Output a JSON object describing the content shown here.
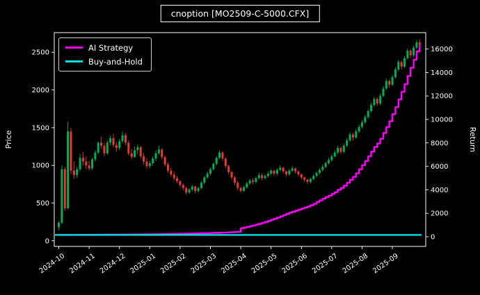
{
  "title": "cnoption [MO2509-C-5000.CFX]",
  "legend": {
    "items": [
      {
        "label": "AI Strategy",
        "color": "#ff00ff"
      },
      {
        "label": "Buy-and-Hold",
        "color": "#00e0e0"
      }
    ]
  },
  "colors": {
    "background": "#000000",
    "foreground": "#ffffff",
    "up": "#00b050",
    "down": "#e53935",
    "ai_strategy": "#ff00ff",
    "buy_and_hold": "#00e0e0"
  },
  "chart_data": {
    "type": "candlestick",
    "title": "cnoption [MO2509-C-5000.CFX]",
    "grid": false,
    "legend_position": "upper-left",
    "x_tick_labels": [
      "2024-10",
      "2024-11",
      "2024-12",
      "2025-01",
      "2025-02",
      "2025-03",
      "2025-04",
      "2025-05",
      "2025-06",
      "2025-07",
      "2025-08",
      "2025-09"
    ],
    "x_tick_positions": [
      0,
      10,
      20,
      30,
      40,
      50,
      60,
      70,
      80,
      90,
      100,
      110
    ],
    "x_range": [
      -1.5,
      121
    ],
    "left_axis": {
      "label": "Price",
      "ticks": [
        0,
        500,
        1000,
        1500,
        2000,
        2500
      ],
      "range": [
        -75,
        2760
      ]
    },
    "right_axis": {
      "label": "Return",
      "ticks": [
        0,
        2000,
        4000,
        6000,
        8000,
        10000,
        12000,
        14000,
        16000
      ],
      "range": [
        -830,
        17400
      ]
    },
    "candles_ohlc": [
      [
        180,
        260,
        140,
        240
      ],
      [
        240,
        1000,
        220,
        950
      ],
      [
        950,
        980,
        400,
        430
      ],
      [
        430,
        1580,
        420,
        1450
      ],
      [
        1450,
        1500,
        880,
        930
      ],
      [
        930,
        1050,
        820,
        870
      ],
      [
        870,
        980,
        830,
        950
      ],
      [
        950,
        1150,
        920,
        1100
      ],
      [
        1100,
        1180,
        1000,
        1050
      ],
      [
        1050,
        1120,
        950,
        1000
      ],
      [
        1000,
        1060,
        930,
        960
      ],
      [
        960,
        1100,
        940,
        1080
      ],
      [
        1080,
        1200,
        1050,
        1170
      ],
      [
        1170,
        1320,
        1150,
        1300
      ],
      [
        1300,
        1380,
        1220,
        1260
      ],
      [
        1260,
        1300,
        1120,
        1160
      ],
      [
        1160,
        1330,
        1140,
        1300
      ],
      [
        1300,
        1400,
        1260,
        1360
      ],
      [
        1360,
        1420,
        1240,
        1270
      ],
      [
        1270,
        1310,
        1180,
        1230
      ],
      [
        1230,
        1350,
        1200,
        1320
      ],
      [
        1320,
        1450,
        1290,
        1400
      ],
      [
        1400,
        1430,
        1270,
        1300
      ],
      [
        1300,
        1330,
        1130,
        1160
      ],
      [
        1160,
        1220,
        1080,
        1110
      ],
      [
        1110,
        1250,
        1100,
        1200
      ],
      [
        1200,
        1280,
        1150,
        1240
      ],
      [
        1240,
        1260,
        1090,
        1120
      ],
      [
        1120,
        1160,
        1010,
        1050
      ],
      [
        1050,
        1100,
        950,
        990
      ],
      [
        990,
        1060,
        960,
        1030
      ],
      [
        1030,
        1120,
        1000,
        1090
      ],
      [
        1090,
        1200,
        1060,
        1160
      ],
      [
        1160,
        1260,
        1140,
        1210
      ],
      [
        1210,
        1230,
        1080,
        1110
      ],
      [
        1110,
        1130,
        980,
        1010
      ],
      [
        1010,
        1040,
        900,
        930
      ],
      [
        930,
        970,
        850,
        880
      ],
      [
        880,
        920,
        800,
        830
      ],
      [
        830,
        860,
        760,
        790
      ],
      [
        790,
        810,
        710,
        740
      ],
      [
        740,
        760,
        670,
        700
      ],
      [
        700,
        720,
        610,
        640
      ],
      [
        640,
        700,
        620,
        680
      ],
      [
        680,
        740,
        660,
        720
      ],
      [
        720,
        730,
        630,
        660
      ],
      [
        660,
        720,
        640,
        700
      ],
      [
        700,
        790,
        680,
        770
      ],
      [
        770,
        860,
        750,
        840
      ],
      [
        840,
        920,
        820,
        890
      ],
      [
        890,
        970,
        870,
        950
      ],
      [
        950,
        1040,
        930,
        1020
      ],
      [
        1020,
        1120,
        1000,
        1100
      ],
      [
        1100,
        1200,
        1080,
        1170
      ],
      [
        1170,
        1190,
        1060,
        1090
      ],
      [
        1090,
        1110,
        960,
        990
      ],
      [
        990,
        1010,
        880,
        910
      ],
      [
        910,
        930,
        810,
        840
      ],
      [
        840,
        860,
        740,
        770
      ],
      [
        770,
        790,
        670,
        700
      ],
      [
        700,
        720,
        640,
        660
      ],
      [
        660,
        730,
        650,
        710
      ],
      [
        710,
        780,
        690,
        760
      ],
      [
        760,
        820,
        740,
        800
      ],
      [
        800,
        830,
        750,
        780
      ],
      [
        780,
        850,
        760,
        830
      ],
      [
        830,
        900,
        810,
        870
      ],
      [
        870,
        890,
        800,
        830
      ],
      [
        830,
        880,
        810,
        860
      ],
      [
        860,
        920,
        840,
        890
      ],
      [
        890,
        950,
        870,
        930
      ],
      [
        930,
        940,
        860,
        890
      ],
      [
        890,
        960,
        870,
        940
      ],
      [
        940,
        1000,
        920,
        970
      ],
      [
        970,
        980,
        890,
        920
      ],
      [
        920,
        930,
        850,
        880
      ],
      [
        880,
        950,
        860,
        930
      ],
      [
        930,
        990,
        910,
        960
      ],
      [
        960,
        970,
        890,
        920
      ],
      [
        920,
        930,
        850,
        880
      ],
      [
        880,
        890,
        810,
        840
      ],
      [
        840,
        850,
        780,
        810
      ],
      [
        810,
        820,
        750,
        780
      ],
      [
        780,
        840,
        760,
        820
      ],
      [
        820,
        880,
        800,
        860
      ],
      [
        860,
        920,
        840,
        900
      ],
      [
        900,
        960,
        880,
        940
      ],
      [
        940,
        1010,
        920,
        980
      ],
      [
        980,
        1050,
        960,
        1030
      ],
      [
        1030,
        1100,
        1010,
        1070
      ],
      [
        1070,
        1150,
        1050,
        1120
      ],
      [
        1120,
        1200,
        1100,
        1170
      ],
      [
        1170,
        1260,
        1150,
        1230
      ],
      [
        1230,
        1250,
        1150,
        1180
      ],
      [
        1180,
        1290,
        1160,
        1260
      ],
      [
        1260,
        1360,
        1240,
        1330
      ],
      [
        1330,
        1440,
        1310,
        1410
      ],
      [
        1410,
        1430,
        1330,
        1370
      ],
      [
        1370,
        1480,
        1350,
        1450
      ],
      [
        1450,
        1540,
        1430,
        1510
      ],
      [
        1510,
        1600,
        1490,
        1570
      ],
      [
        1570,
        1670,
        1550,
        1640
      ],
      [
        1640,
        1750,
        1620,
        1720
      ],
      [
        1720,
        1830,
        1700,
        1800
      ],
      [
        1800,
        1910,
        1780,
        1880
      ],
      [
        1880,
        1900,
        1790,
        1820
      ],
      [
        1820,
        1950,
        1800,
        1920
      ],
      [
        1920,
        2050,
        1900,
        2020
      ],
      [
        2020,
        2150,
        2000,
        2120
      ],
      [
        2120,
        2140,
        2030,
        2070
      ],
      [
        2070,
        2200,
        2050,
        2170
      ],
      [
        2170,
        2300,
        2150,
        2270
      ],
      [
        2270,
        2400,
        2250,
        2370
      ],
      [
        2370,
        2390,
        2270,
        2310
      ],
      [
        2310,
        2450,
        2290,
        2420
      ],
      [
        2420,
        2550,
        2400,
        2520
      ],
      [
        2520,
        2540,
        2420,
        2460
      ],
      [
        2460,
        2590,
        2440,
        2560
      ],
      [
        2560,
        2660,
        2540,
        2630
      ],
      [
        2630,
        2670,
        2570,
        2600
      ]
    ],
    "series": [
      {
        "name": "AI Strategy",
        "axis": "right",
        "style": "step",
        "color": "#ff00ff",
        "values": [
          150,
          150,
          152,
          155,
          155,
          158,
          160,
          160,
          162,
          165,
          165,
          168,
          170,
          170,
          172,
          175,
          175,
          178,
          180,
          182,
          185,
          185,
          188,
          190,
          190,
          192,
          195,
          195,
          198,
          200,
          200,
          205,
          210,
          215,
          220,
          225,
          230,
          235,
          240,
          245,
          250,
          255,
          260,
          265,
          270,
          278,
          285,
          292,
          300,
          308,
          315,
          322,
          330,
          340,
          350,
          360,
          372,
          385,
          398,
          410,
          720,
          780,
          840,
          900,
          960,
          1030,
          1100,
          1180,
          1260,
          1350,
          1440,
          1530,
          1630,
          1730,
          1840,
          1940,
          2050,
          2130,
          2220,
          2310,
          2400,
          2480,
          2570,
          2680,
          2800,
          2950,
          3100,
          3250,
          3380,
          3500,
          3650,
          3800,
          4000,
          4150,
          4350,
          4600,
          4850,
          5100,
          5400,
          5750,
          6100,
          6450,
          6850,
          7250,
          7650,
          7950,
          8350,
          8850,
          9350,
          9850,
          10450,
          11050,
          11700,
          12350,
          13000,
          13700,
          14400,
          15100,
          15800,
          16350
        ]
      },
      {
        "name": "Buy-and-Hold",
        "axis": "right",
        "style": "flat",
        "color": "#00e0e0",
        "constant": 150
      }
    ]
  }
}
